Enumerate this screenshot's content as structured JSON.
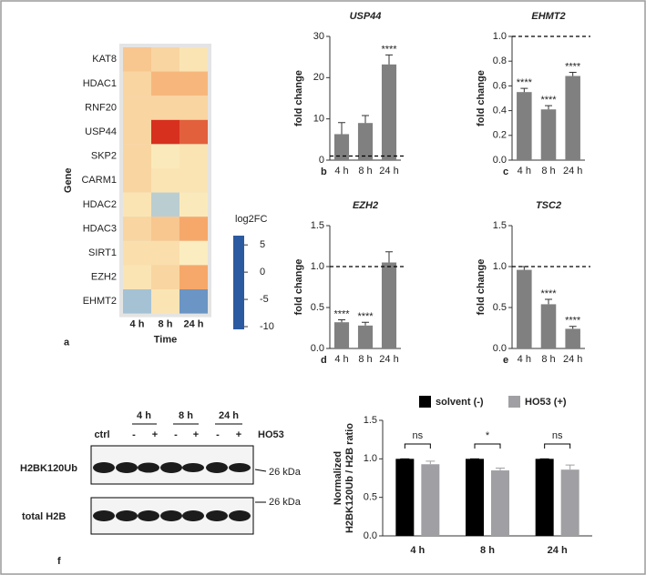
{
  "chart_data": [
    {
      "type": "heatmap",
      "panel_label": "a",
      "xlabel": "Time",
      "ylabel": "Gene",
      "categories": [
        "4 h",
        "8 h",
        "24 h"
      ],
      "rows": [
        "KAT8",
        "HDAC1",
        "RNF20",
        "USP44",
        "SKP2",
        "CARM1",
        "HDAC2",
        "HDAC3",
        "SIRT1",
        "EZH2",
        "EHMT2"
      ],
      "row_colors": [
        "#333333",
        "#333333",
        "#333333",
        "#e03030",
        "#333333",
        "#333333",
        "#333333",
        "#333333",
        "#333333",
        "#e03030",
        "#e03030"
      ],
      "values": [
        [
          1.5,
          1,
          0.5
        ],
        [
          1,
          2,
          2
        ],
        [
          1,
          1,
          1
        ],
        [
          1,
          5,
          4
        ],
        [
          1,
          0.3,
          0.5
        ],
        [
          1,
          0.5,
          0.5
        ],
        [
          0.5,
          -3,
          0.3
        ],
        [
          1,
          1.5,
          2.5
        ],
        [
          0.7,
          0.7,
          0.2
        ],
        [
          0.5,
          1,
          2.5
        ],
        [
          -4,
          0.5,
          -7
        ]
      ],
      "colorbar_title": "log2FC",
      "clim": [
        -10.5,
        6.7
      ],
      "cticks": [
        5,
        0,
        -5,
        -10
      ],
      "colorscale": [
        {
          "value": -10.5,
          "color": "#2c5aa0"
        },
        {
          "value": -5,
          "color": "#8fb6d9"
        },
        {
          "value": 0,
          "color": "#fbf3c6"
        },
        {
          "value": 2.5,
          "color": "#f6a86a"
        },
        {
          "value": 5,
          "color": "#d7301f"
        },
        {
          "value": 6.7,
          "color": "#c0201a"
        }
      ]
    },
    {
      "type": "bar",
      "panel_label": "b",
      "title": "USP44",
      "ylabel": "fold change",
      "categories": [
        "4 h",
        "8 h",
        "24 h"
      ],
      "values": [
        6.3,
        9,
        23.2
      ],
      "errors": [
        2.8,
        1.8,
        2.3
      ],
      "significance": [
        null,
        null,
        "****"
      ],
      "color": "#808080",
      "ylim": [
        0,
        30
      ],
      "yticks": [
        0,
        10,
        20,
        30
      ],
      "reference_line": 1
    },
    {
      "type": "bar",
      "panel_label": "c",
      "title": "EHMT2",
      "ylabel": "fold change",
      "categories": [
        "4 h",
        "8 h",
        "24 h"
      ],
      "values": [
        0.55,
        0.41,
        0.68
      ],
      "errors": [
        0.03,
        0.03,
        0.03
      ],
      "significance": [
        "****",
        "****",
        "****"
      ],
      "color": "#808080",
      "ylim": [
        0,
        1
      ],
      "yticks": [
        {
          "value": 0,
          "label": "0.0"
        },
        0.2,
        0.4,
        0.6,
        0.8,
        {
          "value": 1,
          "label": "1.0"
        }
      ],
      "reference_line": 1
    },
    {
      "type": "bar",
      "panel_label": "d",
      "title": "EZH2",
      "ylabel": "fold change",
      "categories": [
        "4 h",
        "8 h",
        "24 h"
      ],
      "values": [
        0.32,
        0.28,
        1.05
      ],
      "errors": [
        0.03,
        0.04,
        0.13
      ],
      "significance": [
        "****",
        "****",
        null
      ],
      "color": "#808080",
      "ylim": [
        0,
        1.5
      ],
      "yticks": [
        {
          "value": 0,
          "label": "0.0"
        },
        0.5,
        {
          "value": 1,
          "label": "1.0"
        },
        1.5
      ],
      "reference_line": 1
    },
    {
      "type": "bar",
      "panel_label": "e",
      "title": "TSC2",
      "ylabel": "fold change",
      "categories": [
        "4 h",
        "8 h",
        "24 h"
      ],
      "values": [
        0.96,
        0.54,
        0.24
      ],
      "errors": [
        0.04,
        0.06,
        0.03
      ],
      "significance": [
        null,
        "****",
        "****"
      ],
      "color": "#808080",
      "ylim": [
        0,
        1.5
      ],
      "yticks": [
        {
          "value": 0,
          "label": "0.0"
        },
        0.5,
        {
          "value": 1,
          "label": "1.0"
        },
        1.5
      ],
      "reference_line": 1
    },
    {
      "type": "grouped_bar",
      "ylabel": [
        "Normalized",
        "H2BK120Ub / H2B ratio"
      ],
      "categories": [
        "4 h",
        "8 h",
        "24 h"
      ],
      "series": [
        {
          "name": "solvent (-)",
          "color": "#000000",
          "values": [
            1,
            1,
            1
          ],
          "errors": [
            0,
            0,
            0
          ]
        },
        {
          "name": "HO53 (+)",
          "color": "#a0a0a4",
          "values": [
            0.93,
            0.85,
            0.86
          ],
          "errors": [
            0.04,
            0.03,
            0.06
          ]
        }
      ],
      "significance": [
        "ns",
        "*",
        "ns"
      ],
      "legend": "top",
      "ylim": [
        0,
        1.5
      ],
      "yticks": [
        {
          "value": 0,
          "label": "0.0"
        },
        0.5,
        {
          "value": 1,
          "label": "1.0"
        },
        1.5
      ]
    }
  ],
  "blot": {
    "panel_label": "f",
    "conditions": [
      "4 h",
      "8 h",
      "24 h"
    ],
    "lanes": [
      "ctrl",
      "-",
      "+",
      "-",
      "+",
      "-",
      "+"
    ],
    "treatment": "HO53",
    "rows": [
      "H2BK120Ub",
      "total H2B"
    ],
    "marker": "26 kDa"
  }
}
